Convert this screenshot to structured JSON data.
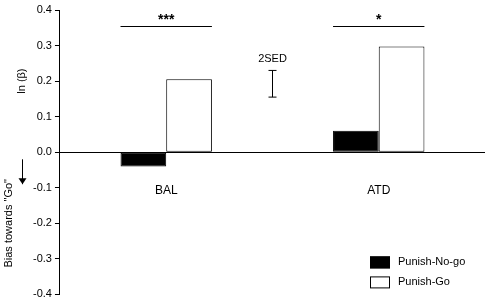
{
  "chart_data": {
    "type": "bar",
    "y_label": "ln (β)",
    "y_annotation": "Bias towards \"Go\"",
    "categories": [
      "BAL",
      "ATD"
    ],
    "series": [
      {
        "name": "Punish-No-go",
        "color": "#000000",
        "values": [
          -0.04,
          0.06
        ]
      },
      {
        "name": "Punish-Go",
        "color": "#ffffff",
        "values": [
          0.205,
          0.297
        ]
      }
    ],
    "ylim": [
      -0.4,
      0.4
    ],
    "yticks": [
      -0.4,
      -0.3,
      -0.2,
      -0.1,
      {
        "value": 0,
        "label": "0.0"
      },
      0.1,
      0.2,
      0.3,
      0.4
    ],
    "grid": false,
    "legend": "lower right",
    "significance": [
      {
        "category": "BAL",
        "label": "***",
        "y": 0.355
      },
      {
        "category": "ATD",
        "label": "*",
        "y": 0.355
      }
    ],
    "sed_bar": {
      "label": "2SED",
      "values": [
        0.155,
        0.23
      ]
    }
  }
}
